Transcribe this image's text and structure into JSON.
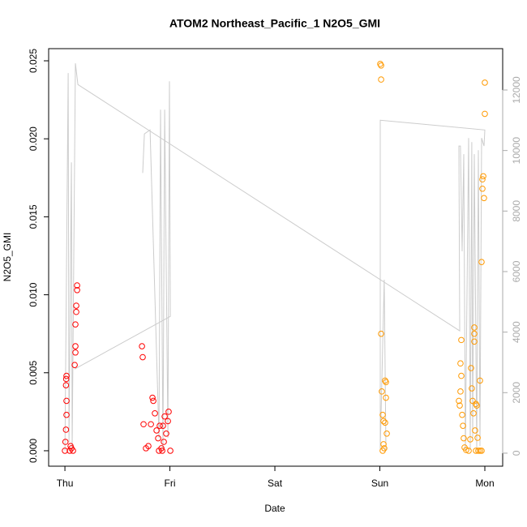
{
  "chart_data": {
    "type": "scatter",
    "title": "ATOM2 Northeast_Pacific_1 N2O5_GMI",
    "x_label": "Date",
    "y_label": "N2O5_GMI",
    "xlim": [
      -0.155,
      4.17
    ],
    "ylim": [
      -0.00099,
      0.02578
    ],
    "y2lim": [
      -430,
      13366
    ],
    "xticks": [
      {
        "value": 0,
        "label": "Thu"
      },
      {
        "value": 1,
        "label": "Fri"
      },
      {
        "value": 2,
        "label": "Sat"
      },
      {
        "value": 3,
        "label": "Sun"
      },
      {
        "value": 4,
        "label": "Mon"
      }
    ],
    "yticks": [
      {
        "value": 0,
        "label": "0.000"
      },
      {
        "value": 0.005,
        "label": "0.005"
      },
      {
        "value": 0.01,
        "label": "0.010"
      },
      {
        "value": 0.015,
        "label": "0.015"
      },
      {
        "value": 0.02,
        "label": "0.020"
      },
      {
        "value": 0.025,
        "label": "0.025"
      }
    ],
    "y2ticks": [
      0,
      2000,
      4000,
      6000,
      8000,
      10000,
      12000
    ],
    "series": [
      {
        "color": "#ff0000",
        "x": [
          0,
          0.005,
          0.01,
          0.015,
          0.015,
          0.01,
          0.012,
          0.015,
          0.046,
          0.054,
          0.062,
          0.077,
          0.093,
          0.1,
          0.1,
          0.1,
          0.108,
          0.108,
          0.116,
          0.116,
          0.734,
          0.741,
          0.749,
          0.772,
          0.795,
          0.819,
          0.834,
          0.842,
          0.857,
          0.873,
          0.888,
          0.903,
          0.919,
          0.927,
          0.896,
          0.934,
          0.942,
          0.95,
          0.965,
          0.981,
          0.988,
          1.004
        ],
        "values": [
          0,
          0.00057,
          0.00135,
          0.0032,
          0.0023,
          0.0042,
          0.0046,
          0.0048,
          0,
          0.0003,
          0.00016,
          0,
          0.0055,
          0.0063,
          0.0067,
          0.0081,
          0.0089,
          0.0093,
          0.0103,
          0.0106,
          0.0067,
          0.006,
          0.0017,
          0.00016,
          0.0003,
          0.0017,
          0.0034,
          0.0032,
          0.0024,
          0.0013,
          0.0008,
          0.0016,
          0.00016,
          0,
          0,
          0.0016,
          0.00057,
          0.0022,
          0.0011,
          0.0019,
          0.0025,
          0
        ]
      },
      {
        "color": "#ff9900",
        "x": [
          3.004,
          3.012,
          3.012,
          3.012,
          3.019,
          3.027,
          3.035,
          3.035,
          3.027,
          3.042,
          3.05,
          3.058,
          3.058,
          3.066,
          3.05,
          4.0,
          4.0,
          3.985,
          3.977,
          3.977,
          3.992,
          3.969,
          3.9,
          3.9,
          3.9,
          3.776,
          3.768,
          3.776,
          3.768,
          3.753,
          3.761,
          3.784,
          3.792,
          3.799,
          3.807,
          3.822,
          3.846,
          3.861,
          3.869,
          3.876,
          3.884,
          3.892,
          3.907,
          3.915,
          3.923,
          3.931,
          3.938,
          3.954,
          3.954,
          3.969,
          3.915
        ],
        "values": [
          0.0248,
          0.0247,
          0.0238,
          0.0075,
          0.0038,
          0.0023,
          0.0019,
          0.00042,
          0,
          0.00016,
          0.0045,
          0.0044,
          0.0034,
          0.0011,
          0.0018,
          0.0236,
          0.0216,
          0.0176,
          0.0174,
          0.0168,
          0.0162,
          0.0121,
          0.0079,
          0.0075,
          0.007,
          0.0071,
          0.0056,
          0.0048,
          0.0038,
          0.0032,
          0.0029,
          0.0023,
          0.0016,
          0.0008,
          0.00021,
          5e-05,
          0,
          0.00073,
          0.0053,
          0.004,
          0.0032,
          0.0024,
          0.0013,
          0.003,
          0.0029,
          0.00083,
          0,
          0.0045,
          0,
          0,
          0
        ]
      },
      {
        "color": "#cccccc",
        "axis": "y2",
        "x": [
          0,
          0.031,
          0.039,
          0.062,
          0.069,
          0.1,
          0.124,
          3.761,
          3.753,
          3.768,
          3.784,
          3.799,
          3.815,
          3.846,
          3.861,
          3.876,
          3.884,
          3.9,
          3.923,
          3.938,
          3.954,
          3.969,
          3.992,
          4.0,
          3.004,
          3.004,
          3.042,
          3.058,
          null,
          0.093,
          1.004,
          0.996,
          0.981,
          0.95,
          0.934,
          0.911,
          0.896,
          0.811,
          0.757,
          0.741
        ],
        "values": [
          80,
          12560,
          370,
          9610,
          110,
          12880,
          12180,
          4040,
          10150,
          10150,
          6670,
          9880,
          110,
          10410,
          110,
          10280,
          510,
          9880,
          110,
          10010,
          240,
          10410,
          10150,
          10680,
          11000,
          110,
          5730,
          110,
          null,
          2780,
          4520,
          12290,
          510,
          11350,
          110,
          11350,
          510,
          10680,
          10550,
          9260
        ]
      }
    ]
  }
}
